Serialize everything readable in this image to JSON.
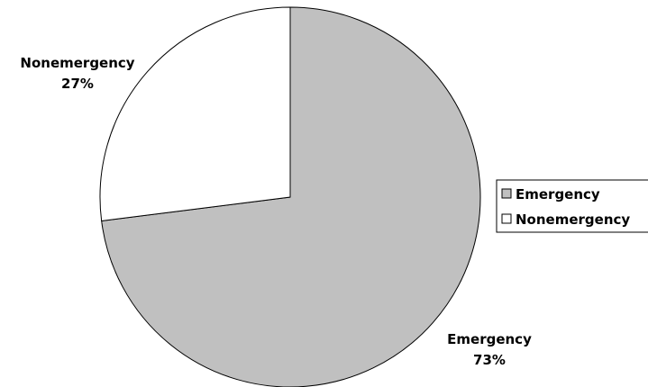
{
  "chart_data": {
    "type": "pie",
    "slices": [
      {
        "label": "Emergency",
        "value": 73,
        "percent_label": "73%",
        "color": "#c0c0c0"
      },
      {
        "label": "Nonemergency",
        "value": 27,
        "percent_label": "27%",
        "color": "#ffffff"
      }
    ],
    "legend": {
      "position": "right",
      "entries": [
        "Emergency",
        "Nonemergency"
      ]
    },
    "edge_color": "#000000"
  }
}
